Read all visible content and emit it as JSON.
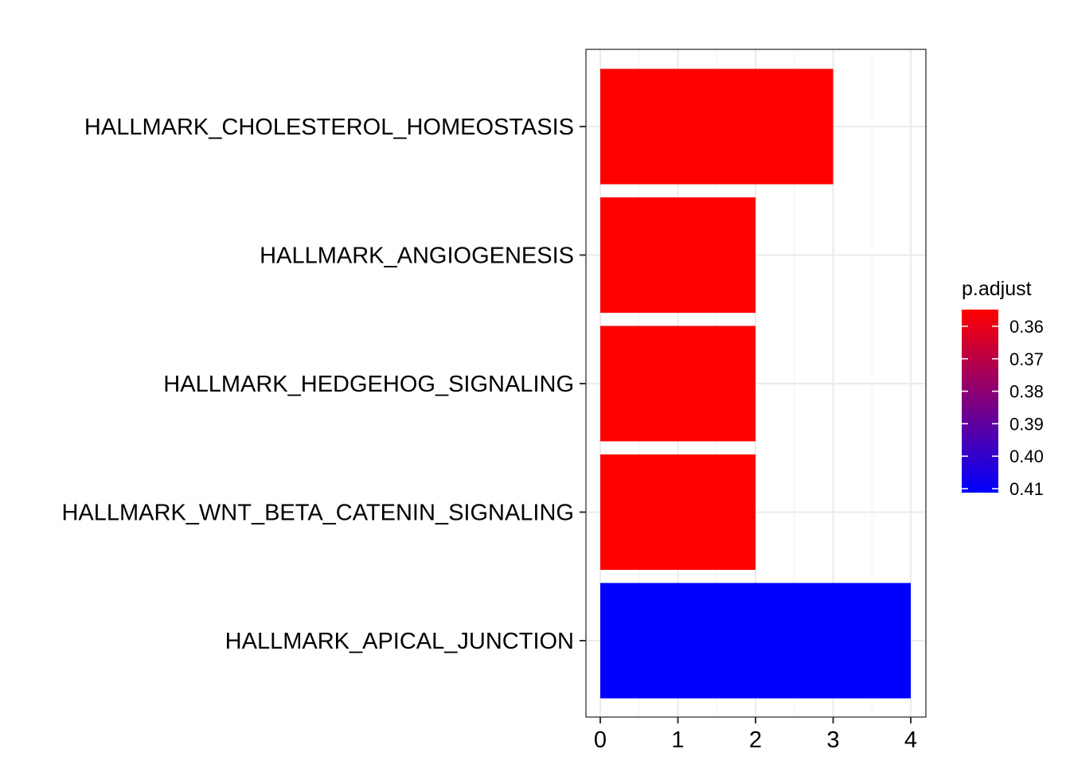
{
  "chart_data": {
    "type": "bar",
    "orientation": "horizontal",
    "title": "",
    "xlabel": "",
    "ylabel": "",
    "categories": [
      "HALLMARK_CHOLESTEROL_HOMEOSTASIS",
      "HALLMARK_ANGIOGENESIS",
      "HALLMARK_HEDGEHOG_SIGNALING",
      "HALLMARK_WNT_BETA_CATENIN_SIGNALING",
      "HALLMARK_APICAL_JUNCTION"
    ],
    "values": [
      3,
      2,
      2,
      2,
      4
    ],
    "color_values": [
      0.36,
      0.36,
      0.36,
      0.36,
      0.41
    ],
    "xlim": [
      0,
      4
    ],
    "x_ticks": [
      "0",
      "1",
      "2",
      "3",
      "4"
    ],
    "grid": true,
    "legend": {
      "title": "p.adjust",
      "position": "right",
      "type": "colorbar",
      "ticks": [
        "0.36",
        "0.37",
        "0.38",
        "0.39",
        "0.40",
        "0.41"
      ],
      "low_value": 0.36,
      "high_value": 0.41,
      "low_color": "#ff0000",
      "high_color": "#0000ff"
    },
    "colors": {
      "panel_border": "#333333",
      "grid_major": "#ebebeb",
      "grid_minor": "#f5f5f5",
      "text": "#000000"
    }
  }
}
